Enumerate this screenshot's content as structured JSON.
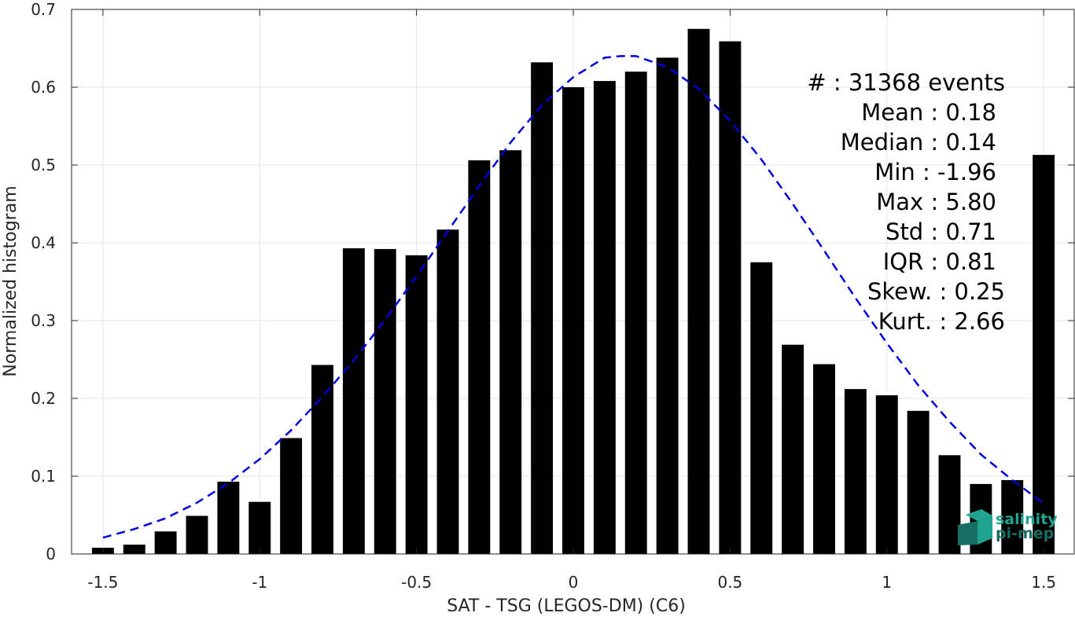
{
  "chart_data": {
    "type": "bar",
    "xlabel": "SAT - TSG (LEGOS-DM) (C6)",
    "ylabel": "Normalized histogram",
    "xlim": [
      -1.6,
      1.6
    ],
    "ylim": [
      0,
      0.7
    ],
    "grid": true,
    "x_ticks": [
      -1.5,
      -1,
      -0.5,
      0,
      0.5,
      1,
      1.5
    ],
    "x_tick_labels": [
      "-1.5",
      "-1",
      "-0.5",
      "0",
      "0.5",
      "1",
      "1.5"
    ],
    "y_ticks": [
      0,
      0.1,
      0.2,
      0.3,
      0.4,
      0.5,
      0.6,
      0.7
    ],
    "y_tick_labels": [
      "0",
      "0.1",
      "0.2",
      "0.3",
      "0.4",
      "0.5",
      "0.6",
      "0.7"
    ],
    "bar_width": 0.07,
    "series": [
      {
        "type": "bar",
        "color": "#000000",
        "x": [
          -1.5,
          -1.4,
          -1.3,
          -1.2,
          -1.1,
          -1.0,
          -0.9,
          -0.8,
          -0.7,
          -0.6,
          -0.5,
          -0.4,
          -0.3,
          -0.2,
          -0.1,
          0.0,
          0.1,
          0.2,
          0.3,
          0.4,
          0.5,
          0.6,
          0.7,
          0.8,
          0.9,
          1.0,
          1.1,
          1.2,
          1.3,
          1.4,
          1.5
        ],
        "values": [
          0.008,
          0.012,
          0.029,
          0.049,
          0.093,
          0.067,
          0.149,
          0.243,
          0.393,
          0.392,
          0.384,
          0.417,
          0.506,
          0.519,
          0.632,
          0.6,
          0.608,
          0.62,
          0.638,
          0.675,
          0.659,
          0.375,
          0.269,
          0.244,
          0.212,
          0.204,
          0.184,
          0.127,
          0.09,
          0.095,
          0.513
        ]
      },
      {
        "type": "line",
        "style": "dashed",
        "color": "#0000dd",
        "x": [
          -1.5,
          -1.4,
          -1.3,
          -1.2,
          -1.1,
          -1.0,
          -0.9,
          -0.8,
          -0.7,
          -0.6,
          -0.5,
          -0.4,
          -0.3,
          -0.2,
          -0.1,
          0.0,
          0.1,
          0.15,
          0.2,
          0.3,
          0.4,
          0.5,
          0.6,
          0.7,
          0.8,
          0.9,
          1.0,
          1.1,
          1.2,
          1.3,
          1.4,
          1.5
        ],
        "values": [
          0.021,
          0.032,
          0.046,
          0.066,
          0.091,
          0.122,
          0.159,
          0.202,
          0.249,
          0.301,
          0.357,
          0.415,
          0.473,
          0.529,
          0.577,
          0.613,
          0.638,
          0.64,
          0.64,
          0.626,
          0.598,
          0.557,
          0.507,
          0.45,
          0.39,
          0.329,
          0.271,
          0.217,
          0.17,
          0.128,
          0.095,
          0.065
        ]
      }
    ],
    "annotations": {
      "stats": [
        "#  : 31368 events",
        "Mean : 0.18",
        "Median : 0.14",
        "Min : -1.96",
        "Max : 5.80",
        "Std : 0.71",
        "IQR : 0.81",
        "Skew. : 0.25",
        "Kurt. : 2.66"
      ]
    },
    "logo": {
      "line1": "salinity",
      "line2": "pi-mep",
      "colors": [
        "#1fa58f",
        "#166e63"
      ]
    }
  }
}
